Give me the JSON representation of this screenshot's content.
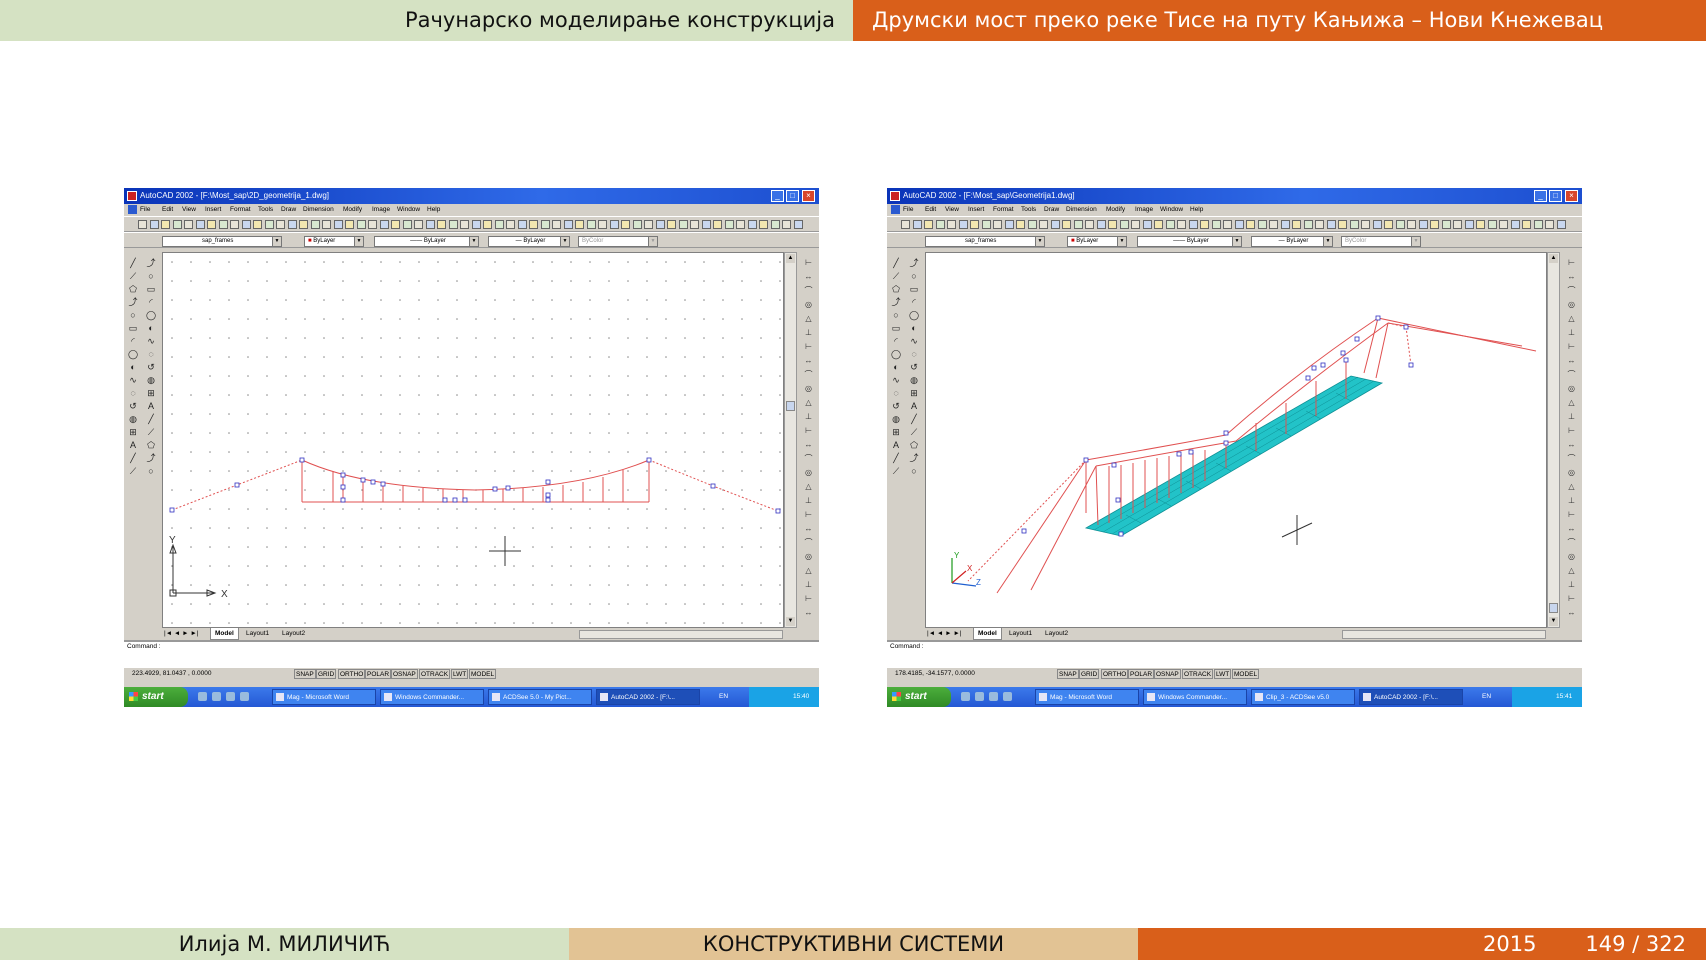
{
  "slide": {
    "header_left": "Рачунарско моделирање конструкција",
    "header_right": "Друмски мост преко реке Тисе на путу Кањижа – Нови Кнежевац",
    "footer_author": "Илија М. МИЛИЧИЋ",
    "footer_title": "КОНСТРУКТИВНИ СИСТЕМИ",
    "footer_year": "2015",
    "footer_page": "149 / 322"
  },
  "colors": {
    "header_green": "#d5e2c3",
    "header_orange": "#d95f1a",
    "footer_tan": "#e2c394",
    "cad_red": "#e05050",
    "deck_cyan": "#22c3c8",
    "grip_blue": "#3030c0"
  },
  "windows": [
    {
      "title": "AutoCAD 2002 - [F:\\Most_sap\\2D_geometrija_1.dwg]",
      "menu": [
        "File",
        "Edit",
        "View",
        "Insert",
        "Format",
        "Tools",
        "Draw",
        "Dimension",
        "Modify",
        "Image",
        "Window",
        "Help"
      ],
      "layer": "sap_frames",
      "color_combo": "ByLayer",
      "linetype_combo": "ByLayer",
      "lineweight_combo": "ByLayer",
      "plotstyle_combo": "ByColor",
      "tabs": [
        "Model",
        "Layout1",
        "Layout2"
      ],
      "command": "Command :",
      "coords": "223.4929, 81.0437 , 0.0000",
      "status_buttons": [
        "SNAP",
        "GRID",
        "ORTHO",
        "POLAR",
        "OSNAP",
        "OTRACK",
        "LWT",
        "MODEL"
      ],
      "start": "start",
      "tasks": [
        "Mag - Microsoft Word",
        "Windows Commander...",
        "ACDSee 5.0 - My Pict...",
        "AutoCAD 2002 - [F:\\..."
      ],
      "lang": "EN",
      "clock": "15:40",
      "axis_x": "X",
      "axis_y": "Y"
    },
    {
      "title": "AutoCAD 2002 - [F:\\Most_sap\\Geometrija1.dwg]",
      "menu": [
        "File",
        "Edit",
        "View",
        "Insert",
        "Format",
        "Tools",
        "Draw",
        "Dimension",
        "Modify",
        "Image",
        "Window",
        "Help"
      ],
      "layer": "sap_frames",
      "color_combo": "ByLayer",
      "linetype_combo": "ByLayer",
      "lineweight_combo": "ByLayer",
      "plotstyle_combo": "ByColor",
      "tabs": [
        "Model",
        "Layout1",
        "Layout2"
      ],
      "command": "Command :",
      "coords": "178.4185, -34.1577, 0.0000",
      "status_buttons": [
        "SNAP",
        "GRID",
        "ORTHO",
        "POLAR",
        "OSNAP",
        "OTRACK",
        "LWT",
        "MODEL"
      ],
      "start": "start",
      "tasks": [
        "Mag - Microsoft Word",
        "Windows Commander...",
        "Clip_3 - ACDSee v5.0",
        "AutoCAD 2002 - [F:\\..."
      ],
      "lang": "EN",
      "clock": "15:41",
      "axis_x": "X",
      "axis_y": "Y",
      "axis_z": "Z"
    }
  ]
}
